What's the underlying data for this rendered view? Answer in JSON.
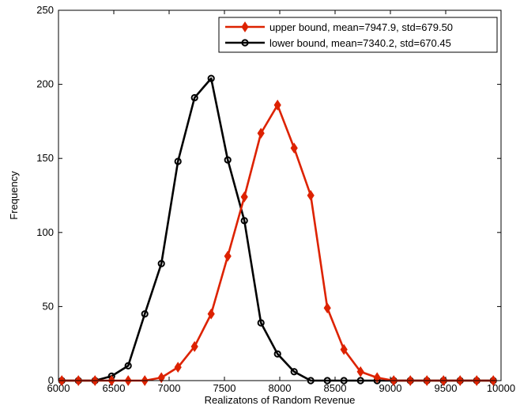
{
  "chart_data": {
    "type": "line",
    "xlabel": "Realizatons of Random Revenue",
    "ylabel": "Frequency",
    "xlim": [
      6000,
      10000
    ],
    "ylim": [
      0,
      250
    ],
    "xticks": [
      6000,
      6500,
      7000,
      7500,
      8000,
      8500,
      9000,
      9500,
      10000
    ],
    "yticks": [
      0,
      50,
      100,
      150,
      200,
      250
    ],
    "grid": false,
    "legend_position": "top-right",
    "x": [
      6030,
      6180,
      6330,
      6480,
      6630,
      6780,
      6930,
      7080,
      7230,
      7380,
      7530,
      7680,
      7830,
      7980,
      8130,
      8280,
      8430,
      8580,
      8730,
      8880,
      9030,
      9180,
      9330,
      9480,
      9630,
      9780,
      9930
    ],
    "series": [
      {
        "name": "upper bound, mean=7947.9, std=679.50",
        "color": "#dd2200",
        "marker": "diamond",
        "values": [
          0,
          0,
          0,
          0,
          0,
          0,
          2,
          9,
          23,
          45,
          84,
          124,
          167,
          186,
          157,
          125,
          49,
          21,
          6,
          2,
          0,
          0,
          0,
          0,
          0,
          0,
          0
        ]
      },
      {
        "name": "lower bound, mean=7340.2, std=670.45",
        "color": "#000000",
        "marker": "circle",
        "values": [
          0,
          0,
          0,
          3,
          10,
          45,
          79,
          148,
          191,
          204,
          149,
          108,
          39,
          18,
          6,
          0,
          0,
          0,
          0,
          0,
          0,
          0,
          0,
          0,
          0,
          0,
          0
        ]
      }
    ]
  }
}
